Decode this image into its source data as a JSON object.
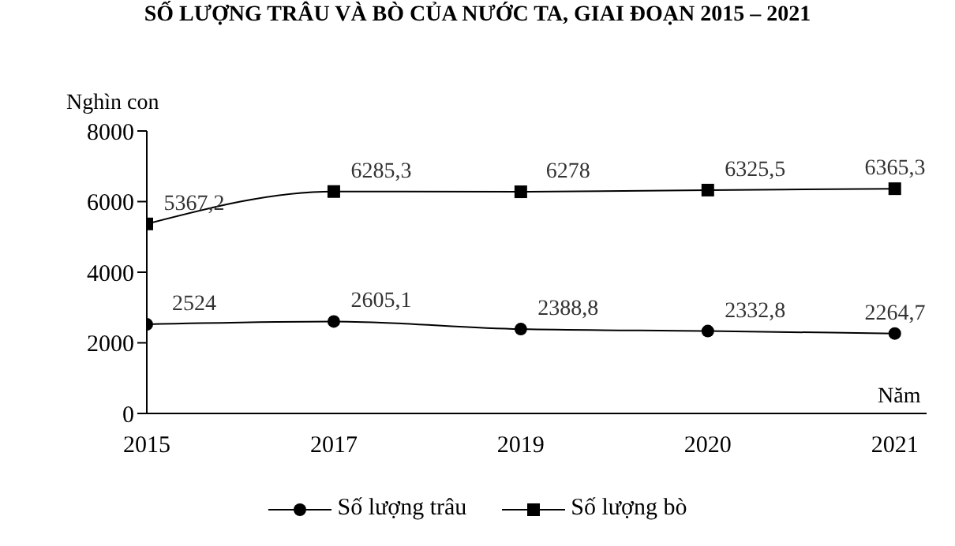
{
  "chart_data": {
    "type": "line",
    "title": "SỐ LƯỢNG TRÂU VÀ BÒ CỦA NƯỚC TA, GIAI ĐOẠN 2015 – 2021",
    "xlabel": "Năm",
    "ylabel": "Nghìn con",
    "categories": [
      "2015",
      "2017",
      "2019",
      "2020",
      "2021"
    ],
    "series": [
      {
        "name": "Số lượng trâu",
        "color": "#000000",
        "marker": "circle",
        "values": [
          2524,
          2605.1,
          2388.8,
          2332.8,
          2264.7
        ],
        "value_labels": [
          "2524",
          "2605,1",
          "2388,8",
          "2332,8",
          "2264,7"
        ]
      },
      {
        "name": "Số lượng bò",
        "color": "#000000",
        "marker": "square",
        "values": [
          5367.2,
          6285.3,
          6278,
          6325.5,
          6365.3
        ],
        "value_labels": [
          "5367,2",
          "6285,3",
          "6278",
          "6325,5",
          "6365,3"
        ]
      }
    ],
    "ylim": [
      0,
      8000
    ],
    "yticks": [
      0,
      2000,
      4000,
      6000,
      8000
    ],
    "grid": false,
    "legend": "bottom"
  }
}
